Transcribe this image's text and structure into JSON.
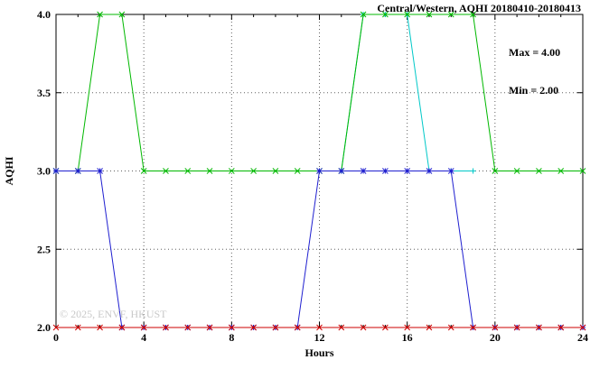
{
  "page": {
    "title_label": "Central/Western, AQHI 20180410-20180413",
    "max_label": "Max = 4.00",
    "min_label": "Min = 2.00",
    "watermark": "© 2025, ENVF, HKUST"
  },
  "chart_data": {
    "type": "line",
    "title": "Central/Western, AQHI 20180410-20180413",
    "xlabel": "Hours",
    "ylabel": "AQHI",
    "xlim": [
      0,
      24
    ],
    "ylim": [
      2.0,
      4.0
    ],
    "xticks": [
      0,
      4,
      8,
      12,
      16,
      20,
      24
    ],
    "yticks": [
      2.0,
      2.5,
      3.0,
      3.5,
      4.0
    ],
    "x_minor_step": 1,
    "grid": true,
    "legend_position": "none",
    "annotations": [
      "Max = 4.00",
      "Min = 2.00"
    ],
    "series": [
      {
        "name": "cyan",
        "color": "#00c8c8",
        "marker": "plus",
        "x": [
          13,
          14,
          15,
          16,
          17,
          18,
          19
        ],
        "y": [
          3,
          4,
          4,
          4,
          3,
          3,
          3
        ]
      },
      {
        "name": "green",
        "color": "#00b800",
        "marker": "cross",
        "x": [
          0,
          1,
          2,
          3,
          4,
          5,
          6,
          7,
          8,
          9,
          10,
          11,
          12,
          13,
          14,
          15,
          16,
          17,
          18,
          19,
          20,
          21,
          22,
          23,
          24
        ],
        "y": [
          3,
          3,
          4,
          4,
          3,
          3,
          3,
          3,
          3,
          3,
          3,
          3,
          3,
          3,
          4,
          4,
          4,
          4,
          4,
          4,
          3,
          3,
          3,
          3,
          3
        ]
      },
      {
        "name": "blue",
        "color": "#2020d0",
        "marker": "star",
        "x": [
          0,
          1,
          2,
          3,
          4,
          5,
          6,
          7,
          8,
          9,
          10,
          11,
          12,
          13,
          14,
          15,
          16,
          17,
          18,
          19,
          20,
          21,
          22,
          23,
          24
        ],
        "y": [
          3,
          3,
          3,
          2,
          2,
          2,
          2,
          2,
          2,
          2,
          2,
          2,
          3,
          3,
          3,
          3,
          3,
          3,
          3,
          2,
          2,
          2,
          2,
          2,
          2
        ]
      },
      {
        "name": "red",
        "color": "#cc0000",
        "marker": "cross",
        "x": [
          0,
          1,
          2,
          3,
          4,
          5,
          6,
          7,
          8,
          9,
          10,
          11,
          12,
          13,
          14,
          15,
          16,
          17,
          18,
          19,
          20,
          21,
          22,
          23,
          24
        ],
        "y": [
          2,
          2,
          2,
          2,
          2,
          2,
          2,
          2,
          2,
          2,
          2,
          2,
          2,
          2,
          2,
          2,
          2,
          2,
          2,
          2,
          2,
          2,
          2,
          2,
          2
        ]
      }
    ]
  }
}
